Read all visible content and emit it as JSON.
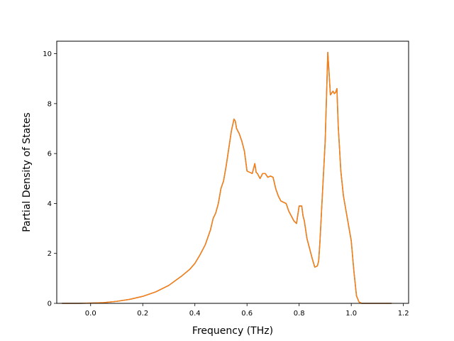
{
  "chart_data": {
    "type": "line",
    "title": "",
    "xlabel": "Frequency (THz)",
    "ylabel": "Partial Density of States",
    "xlim": [
      -0.13,
      1.22
    ],
    "ylim": [
      0,
      10.5
    ],
    "xticks": [
      0.0,
      0.2,
      0.4,
      0.6,
      0.8,
      1.0,
      1.2
    ],
    "xtick_labels": [
      "0.0",
      "0.2",
      "0.4",
      "0.6",
      "0.8",
      "1.0",
      "1.2"
    ],
    "yticks": [
      0,
      2,
      4,
      6,
      8,
      10
    ],
    "ytick_labels": [
      "0",
      "2",
      "4",
      "6",
      "8",
      "10"
    ],
    "grid": false,
    "legend": "none",
    "series": [
      {
        "color": "#1f77b4",
        "x": [
          -0.11,
          -0.05,
          0.0,
          0.05,
          0.1,
          0.15,
          0.2,
          0.25,
          0.3,
          0.35,
          0.38,
          0.4,
          0.42,
          0.44,
          0.46,
          0.47,
          0.48,
          0.49,
          0.5,
          0.51,
          0.52,
          0.53,
          0.54,
          0.55,
          0.555,
          0.56,
          0.57,
          0.58,
          0.59,
          0.6,
          0.61,
          0.62,
          0.63,
          0.635,
          0.64,
          0.65,
          0.66,
          0.67,
          0.68,
          0.69,
          0.7,
          0.71,
          0.72,
          0.73,
          0.74,
          0.75,
          0.76,
          0.77,
          0.78,
          0.79,
          0.8,
          0.81,
          0.815,
          0.82,
          0.83,
          0.84,
          0.85,
          0.86,
          0.87,
          0.875,
          0.88,
          0.885,
          0.89,
          0.9,
          0.91,
          0.92,
          0.93,
          0.935,
          0.94,
          0.945,
          0.95,
          0.96,
          0.97,
          0.98,
          0.99,
          1.0,
          1.01,
          1.02,
          1.03,
          1.04,
          1.05,
          1.055,
          1.06,
          1.1,
          1.155
        ],
        "y": [
          0,
          0,
          0.01,
          0.03,
          0.08,
          0.16,
          0.28,
          0.46,
          0.72,
          1.1,
          1.36,
          1.6,
          1.95,
          2.35,
          2.95,
          3.4,
          3.62,
          4.0,
          4.6,
          4.9,
          5.5,
          6.2,
          6.9,
          7.38,
          7.3,
          7.0,
          6.8,
          6.5,
          6.1,
          5.3,
          5.25,
          5.2,
          5.6,
          5.25,
          5.2,
          5.0,
          5.2,
          5.2,
          5.05,
          5.1,
          5.05,
          4.6,
          4.3,
          4.1,
          4.05,
          4.0,
          3.7,
          3.5,
          3.3,
          3.2,
          3.9,
          3.9,
          3.5,
          3.3,
          2.6,
          2.2,
          1.8,
          1.45,
          1.5,
          1.7,
          2.5,
          3.5,
          4.5,
          6.5,
          10.05,
          8.35,
          8.5,
          8.4,
          8.45,
          8.6,
          7.1,
          5.3,
          4.3,
          3.7,
          3.1,
          2.5,
          1.3,
          0.3,
          0.05,
          0,
          0,
          0,
          0,
          0,
          0
        ]
      },
      {
        "color": "#ff7f0e",
        "x": [
          -0.11,
          -0.05,
          0.0,
          0.05,
          0.1,
          0.15,
          0.2,
          0.25,
          0.3,
          0.35,
          0.38,
          0.4,
          0.42,
          0.44,
          0.46,
          0.47,
          0.48,
          0.49,
          0.5,
          0.51,
          0.52,
          0.53,
          0.54,
          0.55,
          0.555,
          0.56,
          0.57,
          0.58,
          0.59,
          0.6,
          0.61,
          0.62,
          0.63,
          0.635,
          0.64,
          0.65,
          0.66,
          0.67,
          0.68,
          0.69,
          0.7,
          0.71,
          0.72,
          0.73,
          0.74,
          0.75,
          0.76,
          0.77,
          0.78,
          0.79,
          0.8,
          0.81,
          0.815,
          0.82,
          0.83,
          0.84,
          0.85,
          0.86,
          0.87,
          0.875,
          0.88,
          0.885,
          0.89,
          0.9,
          0.91,
          0.92,
          0.93,
          0.935,
          0.94,
          0.945,
          0.95,
          0.96,
          0.97,
          0.98,
          0.99,
          1.0,
          1.01,
          1.02,
          1.03,
          1.04,
          1.05,
          1.055,
          1.06,
          1.1,
          1.155
        ],
        "y": [
          0,
          0,
          0.01,
          0.03,
          0.08,
          0.16,
          0.28,
          0.46,
          0.72,
          1.1,
          1.36,
          1.6,
          1.95,
          2.35,
          2.95,
          3.4,
          3.62,
          4.0,
          4.6,
          4.9,
          5.5,
          6.2,
          6.9,
          7.38,
          7.3,
          7.0,
          6.8,
          6.5,
          6.1,
          5.3,
          5.25,
          5.2,
          5.6,
          5.25,
          5.2,
          5.0,
          5.2,
          5.2,
          5.05,
          5.1,
          5.05,
          4.6,
          4.3,
          4.1,
          4.05,
          4.0,
          3.7,
          3.5,
          3.3,
          3.2,
          3.9,
          3.9,
          3.5,
          3.3,
          2.6,
          2.2,
          1.8,
          1.45,
          1.5,
          1.7,
          2.5,
          3.5,
          4.5,
          6.5,
          10.05,
          8.35,
          8.5,
          8.4,
          8.45,
          8.6,
          7.1,
          5.3,
          4.3,
          3.7,
          3.1,
          2.5,
          1.3,
          0.3,
          0.05,
          0,
          0,
          0,
          0,
          0,
          0
        ]
      }
    ]
  }
}
